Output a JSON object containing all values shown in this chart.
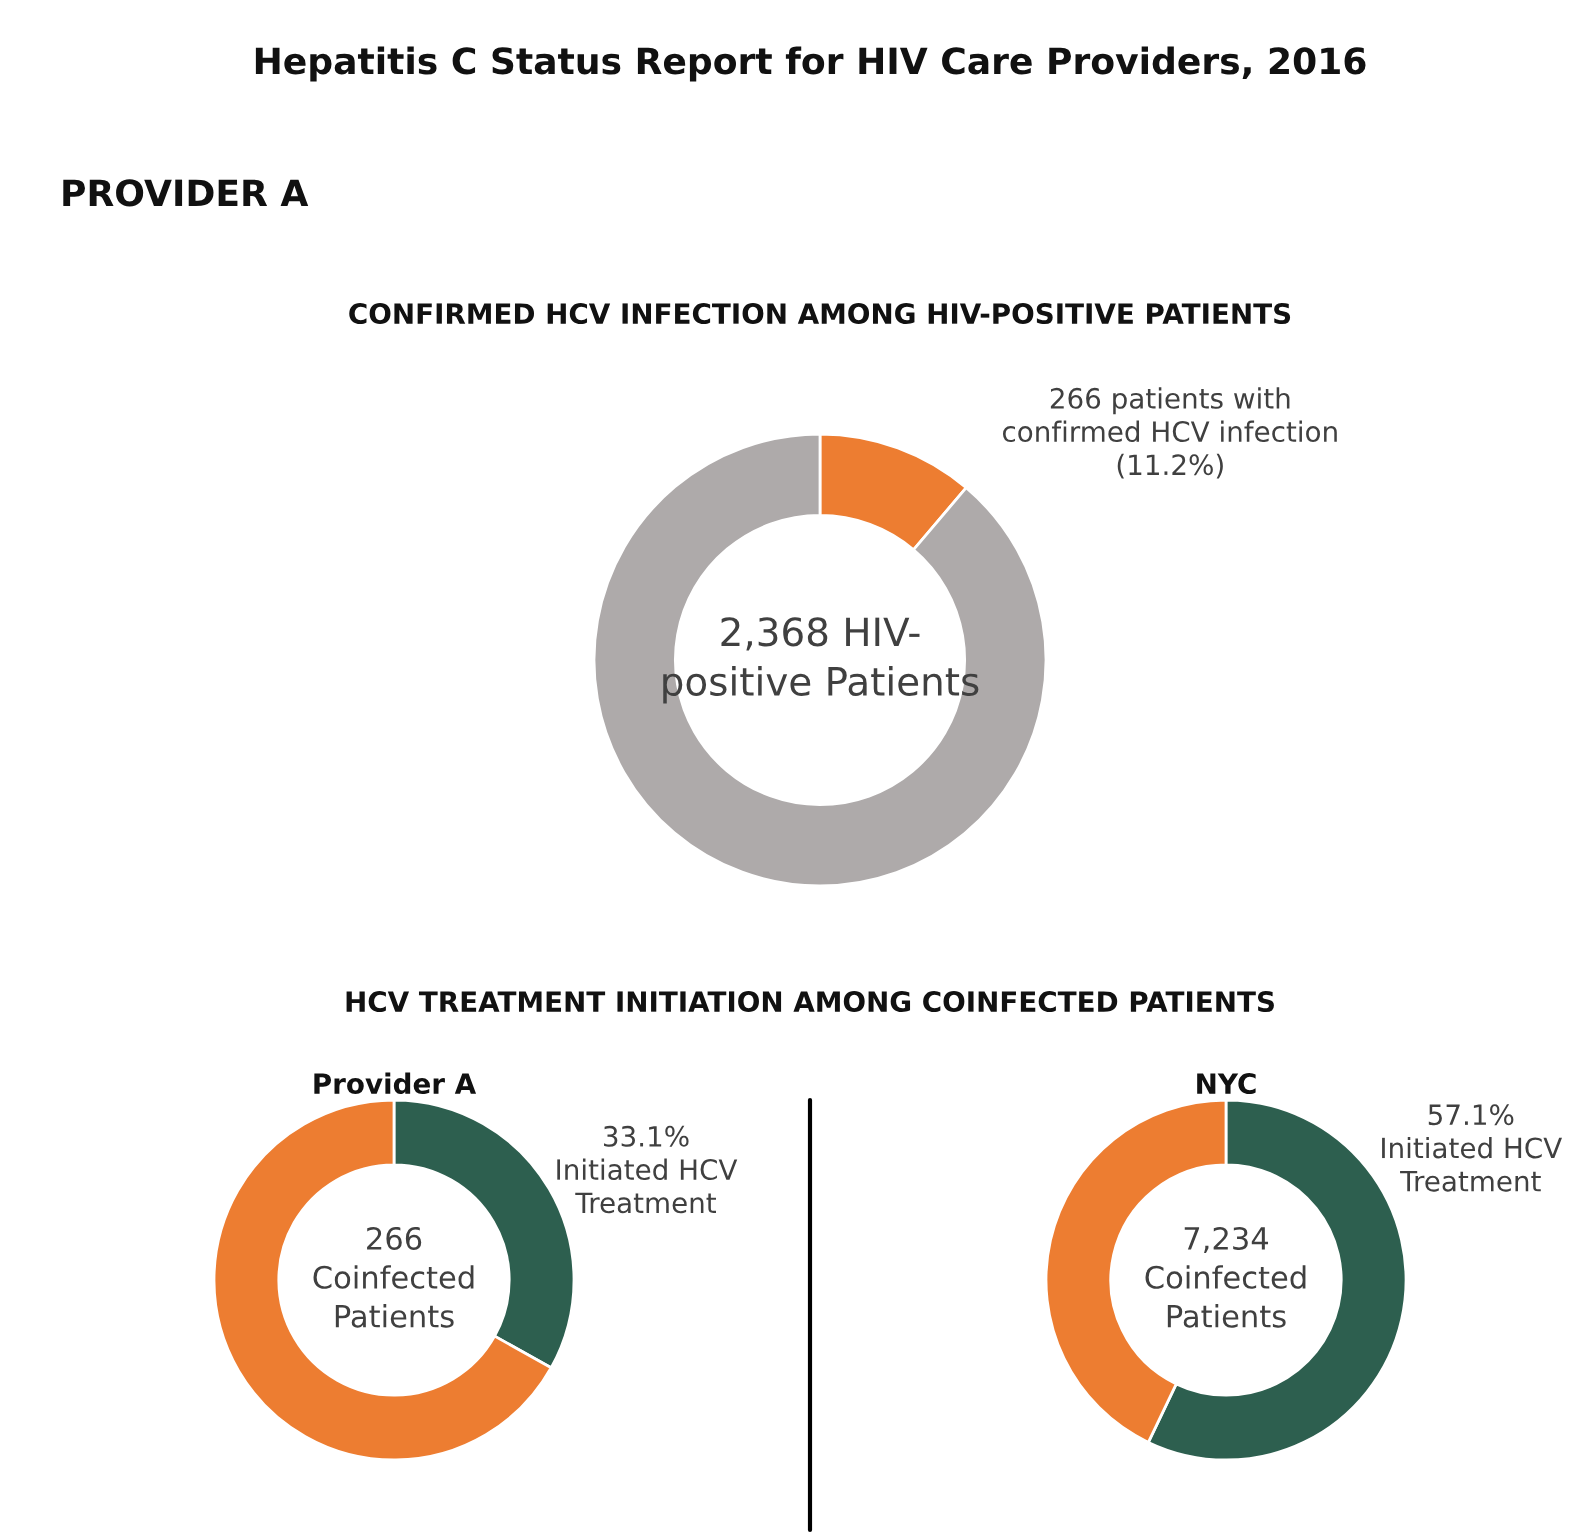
{
  "chart_data": [
    {
      "type": "donut",
      "title": "CONFIRMED HCV INFECTION AMONG HIV-POSITIVE PATIENTS",
      "categories": [
        "266 patients with\nconfirmed HCV infection\n(11.2%)",
        null
      ],
      "values": [
        11.2,
        88.8
      ],
      "colors": [
        "#ed7d31",
        "#aeaaaa"
      ],
      "annotations": [
        "Hepatitis C Status Report for HIV Care Providers, 2016",
        "PROVIDER A",
        "2,368 HIV-\npositive Patients"
      ]
    },
    {
      "type": "donut",
      "title": "Provider A",
      "categories": [
        "33.1%\nInitiated HCV\nTreatment",
        null
      ],
      "values": [
        33.1,
        66.9
      ],
      "colors": [
        "#2d5f4f",
        "#ed7d31"
      ],
      "annotations": [
        "HCV TREATMENT INITIATION AMONG COINFECTED PATIENTS",
        "266\nCoinfected\nPatients"
      ]
    },
    {
      "type": "donut",
      "title": "NYC",
      "categories": [
        "57.1%\nInitiated HCV\nTreatment",
        null
      ],
      "values": [
        57.1,
        42.9
      ],
      "colors": [
        "#2d5f4f",
        "#ed7d31"
      ],
      "annotations": [
        "7,234\nCoinfected\nPatients"
      ]
    }
  ]
}
